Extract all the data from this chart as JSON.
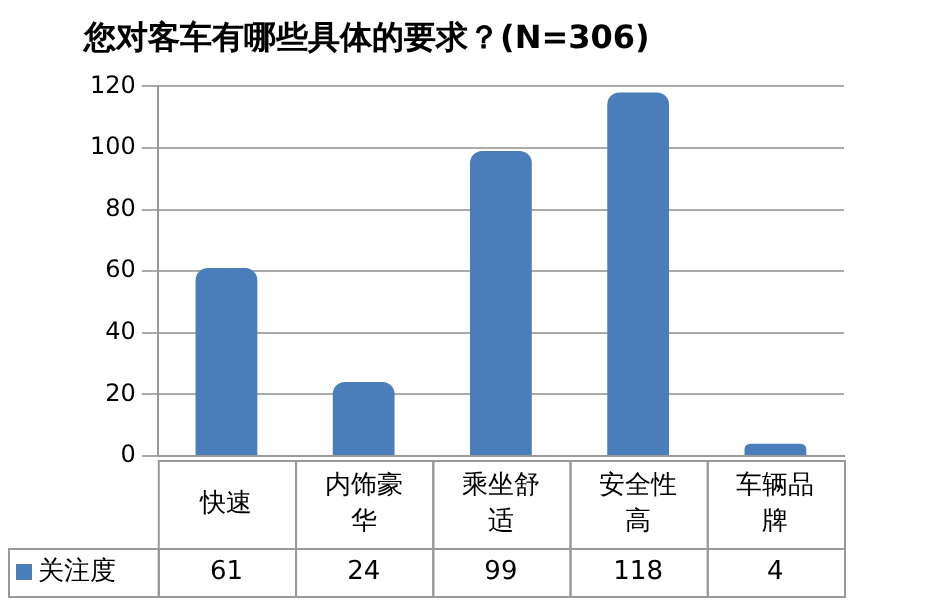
{
  "chart_data": {
    "type": "bar",
    "title": "您对客车有哪些具体的要求？(N=306)",
    "categories": [
      "快速",
      "内饰豪华",
      "乘坐舒适",
      "安全性高",
      "车辆品牌"
    ],
    "series": [
      {
        "name": "关注度",
        "color": "#4a7ebb",
        "values": [
          61,
          24,
          99,
          118,
          4
        ]
      }
    ],
    "ylim": [
      0,
      120
    ],
    "yticks": [
      0,
      20,
      40,
      60,
      80,
      100,
      120
    ],
    "grid": "y",
    "legend": "bottom",
    "data_labels": true
  }
}
